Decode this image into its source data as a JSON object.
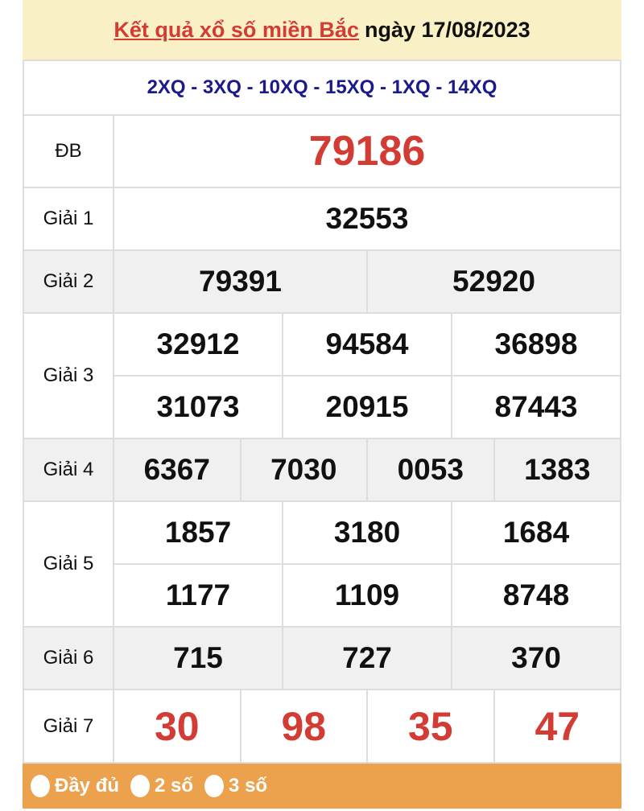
{
  "header": {
    "title_link": "Kết quả xổ số miền Bắc",
    "date_text": "ngày 17/08/2023"
  },
  "codes": "2XQ - 3XQ - 10XQ - 15XQ - 1XQ - 14XQ",
  "prizes": [
    {
      "label": "ĐB",
      "rows": [
        [
          "79186"
        ]
      ]
    },
    {
      "label": "Giải 1",
      "rows": [
        [
          "32553"
        ]
      ]
    },
    {
      "label": "Giải 2",
      "rows": [
        [
          "79391",
          "52920"
        ]
      ]
    },
    {
      "label": "Giải 3",
      "rows": [
        [
          "32912",
          "94584",
          "36898"
        ],
        [
          "31073",
          "20915",
          "87443"
        ]
      ]
    },
    {
      "label": "Giải 4",
      "rows": [
        [
          "6367",
          "7030",
          "0053",
          "1383"
        ]
      ]
    },
    {
      "label": "Giải 5",
      "rows": [
        [
          "1857",
          "3180",
          "1684"
        ],
        [
          "1177",
          "1109",
          "8748"
        ]
      ]
    },
    {
      "label": "Giải 6",
      "rows": [
        [
          "715",
          "727",
          "370"
        ]
      ]
    },
    {
      "label": "Giải 7",
      "rows": [
        [
          "30",
          "98",
          "35",
          "47"
        ]
      ]
    }
  ],
  "footer": {
    "options": [
      "Đầy đủ",
      "2 số",
      "3 số"
    ]
  },
  "colors": {
    "accent_red": "#d23c34",
    "code_blue": "#1a1a8c",
    "header_bg": "#f9f0c6",
    "footer_bg": "#eca14d"
  }
}
